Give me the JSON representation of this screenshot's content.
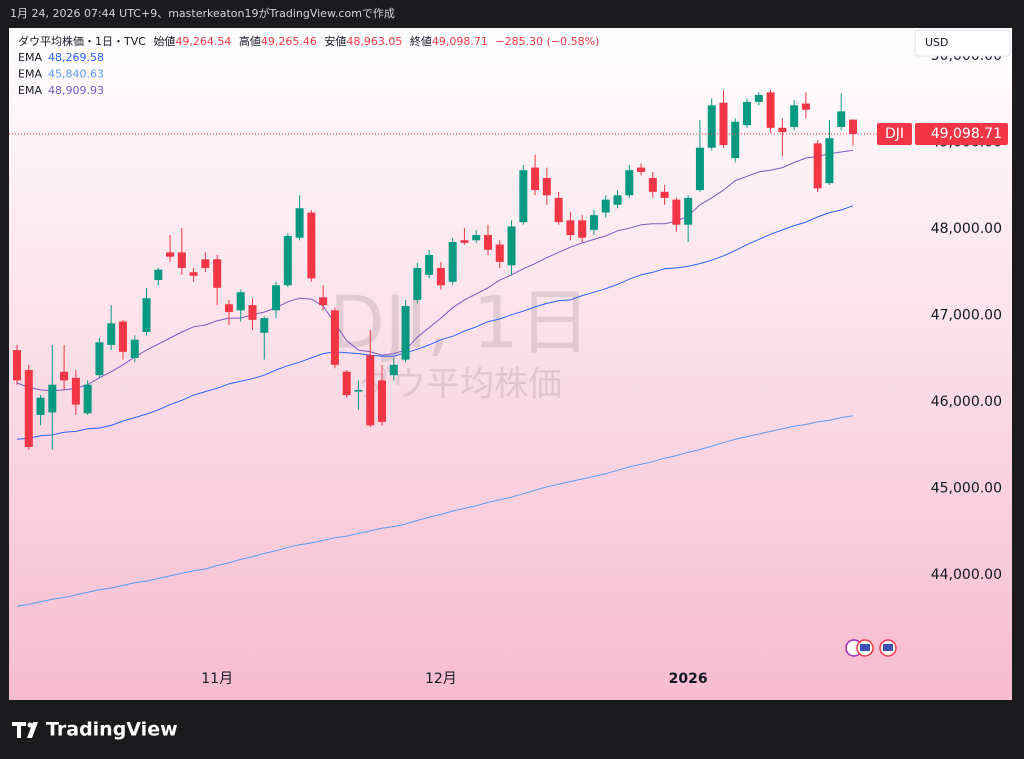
{
  "header": {
    "caption": "1月 24, 2026 07:44 UTC+9、masterkeaton19がTradingView.comで作成"
  },
  "chart_data": {
    "type": "candlestick",
    "title": "ダウ平均株価・1日・TVC",
    "ohlc_legend": [
      {
        "label": "始値",
        "value": "49,264.54"
      },
      {
        "label": "高値",
        "value": "49,265.46"
      },
      {
        "label": "安値",
        "value": "48,963.05"
      },
      {
        "label": "終値",
        "value": "49,098.71"
      }
    ],
    "change": "−285.30 (−0.58%)",
    "symbol": "DJI",
    "last_price_label": "49,098.71",
    "currency": "USD",
    "watermark": [
      "DJI, 1日",
      "ダウ平均株価"
    ],
    "categories": [
      null,
      null,
      null,
      null,
      null,
      null,
      null,
      null,
      null,
      null,
      null,
      null,
      null,
      null,
      null,
      null,
      null,
      "11月",
      null,
      null,
      null,
      null,
      null,
      null,
      null,
      null,
      null,
      null,
      null,
      null,
      null,
      null,
      null,
      null,
      null,
      null,
      "12月",
      null,
      null,
      null,
      null,
      null,
      null,
      null,
      null,
      null,
      null,
      null,
      null,
      null,
      null,
      null,
      null,
      null,
      null,
      null,
      null,
      "2026",
      null,
      null,
      null,
      null,
      null,
      null,
      null,
      null,
      null,
      null,
      null,
      null,
      null,
      null
    ],
    "open": [
      46600,
      46370,
      45850,
      45880,
      46350,
      46280,
      45870,
      46310,
      46660,
      46930,
      46510,
      46810,
      47410,
      47730,
      47730,
      47500,
      47650,
      47650,
      47130,
      47060,
      47120,
      46800,
      47060,
      47350,
      47900,
      48190,
      47210,
      47060,
      46350,
      46120,
      46540,
      46250,
      46310,
      46490,
      47180,
      47470,
      47550,
      47390,
      47870,
      47870,
      47930,
      47820,
      47580,
      48080,
      48710,
      48590,
      48360,
      48100,
      48100,
      47990,
      48190,
      48280,
      48390,
      48710,
      48590,
      48430,
      48340,
      48050,
      48450,
      48940,
      49460,
      48820,
      49200,
      49470,
      49580,
      49170,
      49180,
      49450,
      48990,
      48530,
      49180,
      49264.54
    ],
    "high": [
      46660,
      46430,
      46080,
      46660,
      46660,
      46370,
      46250,
      46740,
      47120,
      46950,
      46770,
      47320,
      47550,
      47930,
      48010,
      47550,
      47730,
      47700,
      47180,
      47300,
      47200,
      46990,
      47390,
      47950,
      48390,
      48220,
      47350,
      47090,
      46370,
      46250,
      46830,
      46430,
      46510,
      47180,
      47610,
      47760,
      47620,
      47900,
      48010,
      47990,
      48050,
      47870,
      48100,
      48740,
      48860,
      48710,
      48430,
      48200,
      48160,
      48220,
      48390,
      48450,
      48740,
      48760,
      48660,
      48510,
      48360,
      48390,
      49260,
      49510,
      49610,
      49280,
      49510,
      49580,
      49610,
      49280,
      49490,
      49580,
      49030,
      49260,
      49570,
      49265.46
    ],
    "low": [
      46200,
      45450,
      45730,
      45450,
      46140,
      45850,
      45850,
      46280,
      46600,
      46490,
      46460,
      46770,
      47350,
      47620,
      47470,
      47390,
      47500,
      47120,
      46890,
      46930,
      46830,
      46490,
      46970,
      47330,
      47870,
      47390,
      47060,
      46390,
      46050,
      45910,
      45710,
      45730,
      46250,
      46460,
      47140,
      47430,
      47300,
      47350,
      47820,
      47840,
      47700,
      47550,
      47470,
      48050,
      48390,
      48280,
      48050,
      47870,
      47850,
      47930,
      48130,
      48240,
      48360,
      48620,
      48360,
      48280,
      47970,
      47850,
      48430,
      48910,
      48940,
      48770,
      49170,
      49430,
      49110,
      48840,
      49140,
      49280,
      48430,
      48510,
      49140,
      48963.05
    ],
    "close": [
      46250,
      45480,
      46050,
      46200,
      46250,
      45970,
      46200,
      46690,
      46910,
      46580,
      46720,
      47200,
      47530,
      47680,
      47550,
      47460,
      47550,
      47320,
      47040,
      47270,
      46950,
      46970,
      47350,
      47920,
      48240,
      47430,
      47120,
      46430,
      46080,
      46140,
      45730,
      45770,
      46430,
      47110,
      47550,
      47700,
      47350,
      47850,
      47840,
      47930,
      47760,
      47620,
      48030,
      48680,
      48450,
      48390,
      48080,
      47930,
      47900,
      48160,
      48340,
      48390,
      48680,
      48660,
      48430,
      48360,
      48050,
      48360,
      48940,
      49430,
      48970,
      49240,
      49470,
      49550,
      49170,
      49120,
      49430,
      49380,
      48470,
      49050,
      49360,
      49098.71
    ],
    "up_color": "#089981",
    "down_color": "#f23645",
    "series": [
      {
        "name": "EMA",
        "value_label": "48,269.58",
        "color": "#2962ff",
        "values": [
          45570,
          45580,
          45610,
          45620,
          45650,
          45660,
          45690,
          45700,
          45730,
          45780,
          45820,
          45860,
          45910,
          45970,
          46020,
          46080,
          46120,
          46160,
          46210,
          46240,
          46270,
          46310,
          46370,
          46420,
          46460,
          46510,
          46560,
          46580,
          46570,
          46560,
          46540,
          46530,
          46530,
          46570,
          46610,
          46660,
          46720,
          46760,
          46820,
          46870,
          46930,
          46960,
          47010,
          47050,
          47100,
          47140,
          47170,
          47180,
          47230,
          47270,
          47310,
          47360,
          47420,
          47470,
          47500,
          47540,
          47550,
          47570,
          47600,
          47640,
          47690,
          47750,
          47820,
          47880,
          47940,
          47990,
          48040,
          48080,
          48140,
          48190,
          48220,
          48269.58
        ]
      },
      {
        "name": "EMA",
        "value_label": "45,840.63",
        "color": "#5b9cf6",
        "values": [
          43640,
          43660,
          43690,
          43720,
          43740,
          43770,
          43800,
          43830,
          43850,
          43880,
          43910,
          43930,
          43960,
          43990,
          44020,
          44050,
          44070,
          44110,
          44140,
          44180,
          44210,
          44250,
          44280,
          44320,
          44350,
          44370,
          44400,
          44430,
          44450,
          44480,
          44510,
          44540,
          44560,
          44590,
          44630,
          44670,
          44700,
          44740,
          44770,
          44800,
          44840,
          44870,
          44900,
          44940,
          44980,
          45020,
          45050,
          45080,
          45110,
          45140,
          45170,
          45210,
          45250,
          45280,
          45310,
          45350,
          45380,
          45420,
          45450,
          45490,
          45530,
          45570,
          45600,
          45630,
          45660,
          45690,
          45720,
          45740,
          45770,
          45790,
          45820,
          45840.63
        ]
      },
      {
        "name": "EMA",
        "value_label": "48,909.93",
        "color": "#7e57c2",
        "values": [
          46220,
          46170,
          46140,
          46130,
          46140,
          46160,
          46200,
          46280,
          46350,
          46430,
          46520,
          46600,
          46670,
          46740,
          46810,
          46870,
          46890,
          46940,
          46970,
          46970,
          47010,
          47040,
          47090,
          47160,
          47200,
          47190,
          47110,
          46910,
          46710,
          46600,
          46580,
          46540,
          46560,
          46600,
          46750,
          46860,
          46970,
          47090,
          47180,
          47250,
          47320,
          47410,
          47470,
          47540,
          47600,
          47670,
          47730,
          47790,
          47840,
          47880,
          47920,
          47980,
          48010,
          48050,
          48060,
          48060,
          48090,
          48150,
          48280,
          48360,
          48450,
          48560,
          48610,
          48660,
          48680,
          48710,
          48770,
          48820,
          48840,
          48870,
          48890,
          48909.93
        ]
      }
    ],
    "ylim": [
      42555,
      50324
    ],
    "yticks": [
      {
        "value": 44000,
        "label": "44,000.00"
      },
      {
        "value": 45000,
        "label": "45,000.00"
      },
      {
        "value": 46000,
        "label": "46,000.00"
      },
      {
        "value": 47000,
        "label": "47,000.00"
      },
      {
        "value": 48000,
        "label": "48,000.00"
      },
      {
        "value": 49000,
        "label": "49,000.00"
      },
      {
        "value": 50000,
        "label": "50,000.00"
      }
    ],
    "grid": false
  },
  "footer": {
    "brand": "TradingView"
  }
}
